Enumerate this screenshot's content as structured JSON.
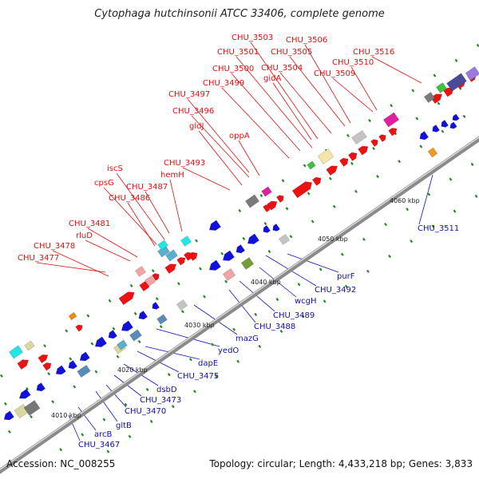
{
  "title": "Cytophaga hutchinsonii ATCC 33406, complete genome",
  "footer": {
    "accession": "Accession: NC_008255",
    "summary": "Topology: circular; Length: 4,433,218 bp; Genes: 3,833"
  },
  "scale_labels": [
    "4010 kbp",
    "4020 kbp",
    "4030 kbp",
    "4040 kbp",
    "4050 kbp",
    "4060 kbp"
  ],
  "colors": {
    "forward": "#ee1111",
    "reverse": "#1111dd",
    "tick": "#228822",
    "backbone": "#999999"
  },
  "forward_labels": [
    "CHU_3477",
    "CHU_3478",
    "rluD",
    "CHU_3481",
    "CHU_3486",
    "cpsG",
    "iscS",
    "CHU_3487",
    "hemH",
    "CHU_3493",
    "gldJ",
    "CHU_3496",
    "CHU_3497",
    "oppA",
    "CHU_3499",
    "CHU_3500",
    "CHU_3501",
    "gidA",
    "CHU_3503",
    "CHU_3504",
    "CHU_3505",
    "CHU_3506",
    "CHU_3509",
    "CHU_3510",
    "CHU_3516"
  ],
  "reverse_labels": [
    "CHU_3467",
    "arcB",
    "gltB",
    "CHU_3470",
    "CHU_3473",
    "dsbD",
    "CHU_3475",
    "dapE",
    "yedO",
    "mazG",
    "CHU_3488",
    "CHU_3489",
    "wcgH",
    "CHU_3492",
    "purF",
    "CHU_3511"
  ]
}
